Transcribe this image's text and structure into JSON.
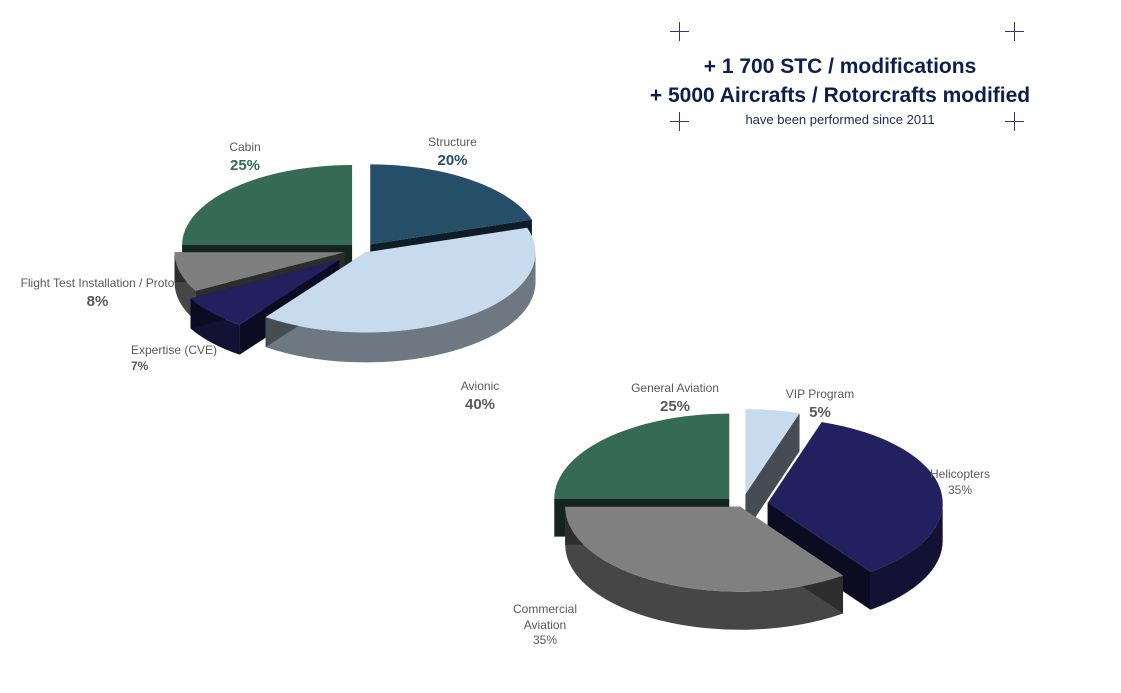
{
  "header": {
    "line1": "+ 1 700 STC / modifications",
    "line2": "+ 5000 Aircrafts / Rotorcrafts modified",
    "line3": "have been performed since 2011"
  },
  "chart_data": [
    {
      "type": "pie",
      "title": "",
      "slices": [
        {
          "name": "Structure",
          "label": "20%",
          "value": 20,
          "color": "#254f69"
        },
        {
          "name": "Avionic",
          "label": "40%",
          "value": 40,
          "color": "#c8daee"
        },
        {
          "name": "Expertise  (CVE)",
          "label": "7%",
          "value": 7,
          "color": "#22205e"
        },
        {
          "name": "Flight Test Installation  / Proto",
          "label": "8%",
          "value": 8,
          "color": "#7f7f7f"
        },
        {
          "name": "Cabin",
          "label": "25%",
          "value": 25,
          "color": "#356a56"
        }
      ]
    },
    {
      "type": "pie",
      "title": "",
      "slices": [
        {
          "name": "VIP Program",
          "label": "5%",
          "value": 5,
          "color": "#c8daee"
        },
        {
          "name": "Helicopters",
          "label": "35%",
          "value": 35,
          "color": "#22205e"
        },
        {
          "name": "Commercial Aviation",
          "label": "35%",
          "value": 35,
          "color": "#808080"
        },
        {
          "name": "General Aviation",
          "label": "25%",
          "value": 25,
          "color": "#356a56"
        }
      ]
    }
  ]
}
